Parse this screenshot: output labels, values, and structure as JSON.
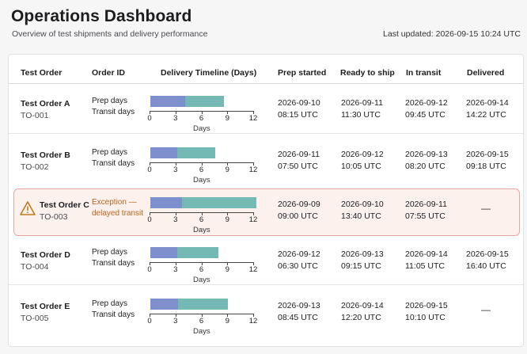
{
  "header": {
    "title": "Operations Dashboard",
    "subtitle": "Overview of test shipments and delivery performance",
    "last_updated": "Last updated: 2026-09-15 10:24 UTC"
  },
  "table": {
    "columns": [
      "Test Order",
      "Order ID",
      "Delivery Timeline (Days)",
      "Prep started",
      "Ready to ship",
      "In transit",
      "Delivered"
    ],
    "axis": {
      "ticks": [
        "0",
        "3",
        "6",
        "9",
        "12"
      ],
      "label": "Days",
      "min": 0,
      "max": 12
    },
    "rows": [
      {
        "name": "Test Order A",
        "order_id": "TO-001",
        "labels": [
          "Prep days",
          "Transit days"
        ],
        "prep_days": 4,
        "transit_days": 4.5,
        "exception": false,
        "prep_started": [
          "2026-09-10",
          "08:15 UTC"
        ],
        "ready_to_ship": [
          "2026-09-11",
          "11:30 UTC"
        ],
        "in_transit": [
          "2026-09-12",
          "09:45 UTC"
        ],
        "delivered": [
          "2026-09-14",
          "14:22 UTC"
        ]
      },
      {
        "name": "Test Order B",
        "order_id": "TO-002",
        "labels": [
          "Prep days",
          "Transit days"
        ],
        "prep_days": 3.1,
        "transit_days": 4.4,
        "exception": false,
        "prep_started": [
          "2026-09-11",
          "07:50 UTC"
        ],
        "ready_to_ship": [
          "2026-09-12",
          "10:05 UTC"
        ],
        "in_transit": [
          "2026-09-13",
          "08:20 UTC"
        ],
        "delivered": [
          "2026-09-15",
          "09:18 UTC"
        ]
      },
      {
        "name": "Test Order C",
        "order_id": "TO-003",
        "labels": [
          "Exception —",
          "delayed transit"
        ],
        "prep_days": 3.7,
        "transit_days": 8.6,
        "exception": true,
        "prep_started": [
          "2026-09-09",
          "09:00 UTC"
        ],
        "ready_to_ship": [
          "2026-09-10",
          "13:40 UTC"
        ],
        "in_transit": [
          "2026-09-11",
          "07:55 UTC"
        ],
        "delivered": [
          "—"
        ]
      },
      {
        "name": "Test Order D",
        "order_id": "TO-004",
        "labels": [
          "Prep days",
          "Transit days"
        ],
        "prep_days": 3.1,
        "transit_days": 4.8,
        "exception": false,
        "prep_started": [
          "2026-09-12",
          "06:30 UTC"
        ],
        "ready_to_ship": [
          "2026-09-13",
          "09:15 UTC"
        ],
        "in_transit": [
          "2026-09-14",
          "11:05 UTC"
        ],
        "delivered": [
          "2026-09-15",
          "16:40 UTC"
        ]
      },
      {
        "name": "Test Order E",
        "order_id": "TO-005",
        "labels": [
          "Prep days",
          "Transit days"
        ],
        "prep_days": 3.2,
        "transit_days": 5.8,
        "exception": false,
        "prep_started": [
          "2026-09-13",
          "08:45 UTC"
        ],
        "ready_to_ship": [
          "2026-09-14",
          "12:20 UTC"
        ],
        "in_transit": [
          "2026-09-15",
          "10:10 UTC"
        ],
        "delivered": [
          "—"
        ]
      }
    ]
  },
  "colors": {
    "prep": "#7e8fce",
    "transit": "#74b9b4",
    "exception_text": "#b8651b",
    "warning_icon": "#c07a1a"
  }
}
